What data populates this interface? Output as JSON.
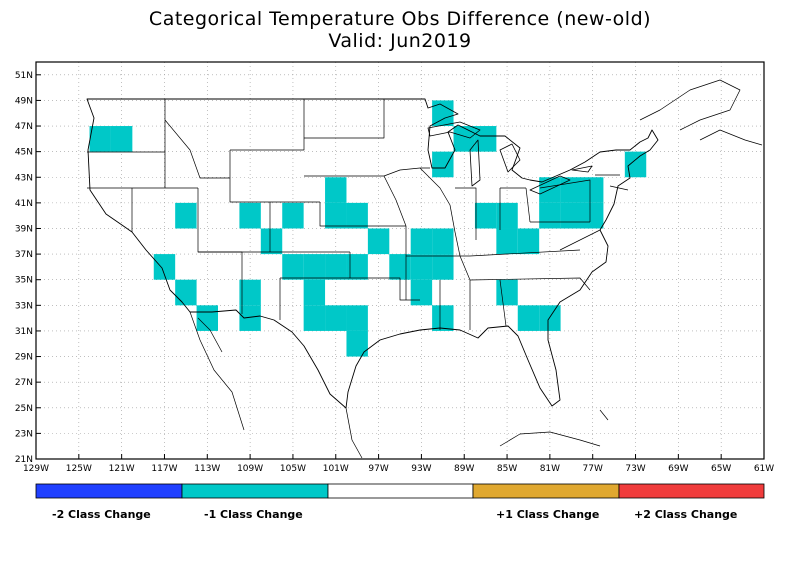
{
  "title": "Categorical Temperature Obs Difference (new-old)",
  "subtitle": "Valid: Jun2019",
  "colors": {
    "minus2": "#2040ff",
    "minus1": "#00c8c8",
    "zero": "#ffffff",
    "plus1": "#e0a830",
    "plus2": "#f03c3c"
  },
  "axes": {
    "lon_ticks": [
      "129W",
      "125W",
      "121W",
      "117W",
      "113W",
      "109W",
      "105W",
      "101W",
      "97W",
      "93W",
      "89W",
      "85W",
      "81W",
      "77W",
      "73W",
      "69W",
      "65W",
      "61W"
    ],
    "lat_ticks": [
      "51N",
      "49N",
      "47N",
      "45N",
      "43N",
      "41N",
      "39N",
      "37N",
      "35N",
      "33N",
      "31N",
      "29N",
      "27N",
      "25N",
      "23N",
      "21N"
    ],
    "lon_range": [
      -129,
      -61
    ],
    "lat_range": [
      21,
      52
    ]
  },
  "legend": {
    "minus2_label": "-2 Class Change",
    "minus1_label": "-1 Class Change",
    "plus1_label": "+1 Class Change",
    "plus2_label": "+2 Class Change"
  },
  "map_data": {
    "cell_size_deg": 2,
    "minus1_cells": [
      [
        -123,
        46
      ],
      [
        -121,
        46
      ],
      [
        -115,
        40
      ],
      [
        -117,
        36
      ],
      [
        -115,
        34
      ],
      [
        -113,
        32
      ],
      [
        -109,
        40
      ],
      [
        -109,
        34
      ],
      [
        -109,
        32
      ],
      [
        -107,
        38
      ],
      [
        -105,
        40
      ],
      [
        -105,
        36
      ],
      [
        -103,
        36
      ],
      [
        -103,
        34
      ],
      [
        -103,
        32
      ],
      [
        -101,
        42
      ],
      [
        -101,
        40
      ],
      [
        -101,
        36
      ],
      [
        -101,
        32
      ],
      [
        -99,
        40
      ],
      [
        -99,
        36
      ],
      [
        -99,
        32
      ],
      [
        -99,
        30
      ],
      [
        -97,
        38
      ],
      [
        -95,
        36
      ],
      [
        -93,
        38
      ],
      [
        -93,
        36
      ],
      [
        -93,
        34
      ],
      [
        -91,
        48
      ],
      [
        -91,
        44
      ],
      [
        -91,
        38
      ],
      [
        -91,
        36
      ],
      [
        -91,
        32
      ],
      [
        -89,
        46
      ],
      [
        -87,
        46
      ],
      [
        -87,
        40
      ],
      [
        -85,
        40
      ],
      [
        -85,
        38
      ],
      [
        -85,
        34
      ],
      [
        -83,
        38
      ],
      [
        -83,
        32
      ],
      [
        -81,
        42
      ],
      [
        -81,
        40
      ],
      [
        -81,
        32
      ],
      [
        -79,
        42
      ],
      [
        -79,
        40
      ],
      [
        -77,
        42
      ],
      [
        -77,
        40
      ],
      [
        -73,
        44
      ]
    ]
  }
}
